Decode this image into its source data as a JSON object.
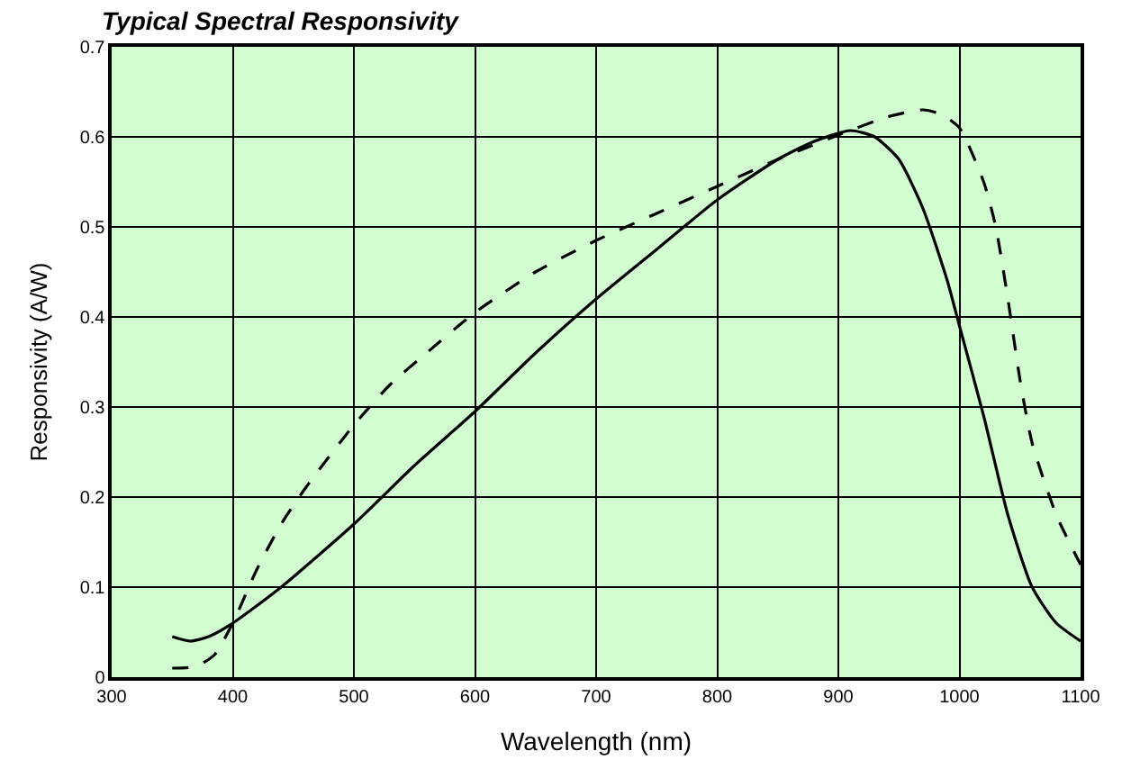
{
  "chart_data": {
    "type": "line",
    "title": "Typical Spectral Responsivity",
    "xlabel": "Wavelength (nm)",
    "ylabel": "Responsivity (A/W)",
    "series": [
      {
        "color": "#000000",
        "line_style": "solid",
        "x": [
          350,
          365,
          380,
          400,
          440,
          500,
          550,
          600,
          650,
          700,
          750,
          800,
          850,
          880,
          910,
          930,
          950,
          970,
          990,
          1000,
          1020,
          1040,
          1060,
          1080,
          1100
        ],
        "values": [
          0.045,
          0.04,
          0.045,
          0.06,
          0.1,
          0.17,
          0.235,
          0.295,
          0.36,
          0.42,
          0.475,
          0.53,
          0.575,
          0.595,
          0.607,
          0.6,
          0.575,
          0.52,
          0.44,
          0.39,
          0.29,
          0.18,
          0.1,
          0.06,
          0.04
        ]
      },
      {
        "color": "#000000",
        "line_style": "dashed",
        "x": [
          350,
          370,
          385,
          400,
          420,
          440,
          460,
          500,
          530,
          560,
          600,
          650,
          700,
          750,
          800,
          850,
          900,
          940,
          970,
          985,
          1000,
          1020,
          1030,
          1040,
          1050,
          1060,
          1080,
          1100
        ],
        "values": [
          0.01,
          0.012,
          0.025,
          0.06,
          0.12,
          0.17,
          0.21,
          0.28,
          0.325,
          0.36,
          0.405,
          0.45,
          0.485,
          0.515,
          0.545,
          0.575,
          0.602,
          0.622,
          0.63,
          0.625,
          0.61,
          0.55,
          0.5,
          0.42,
          0.33,
          0.26,
          0.18,
          0.125
        ]
      }
    ],
    "xlim": [
      300,
      1100
    ],
    "xticks": [
      300,
      400,
      500,
      600,
      700,
      800,
      900,
      1000,
      1100
    ],
    "ylim": [
      0,
      0.7
    ],
    "yticks": [
      0,
      0.1,
      0.2,
      0.3,
      0.4,
      0.5,
      0.6,
      0.7
    ],
    "grid": true,
    "marker": "none"
  }
}
